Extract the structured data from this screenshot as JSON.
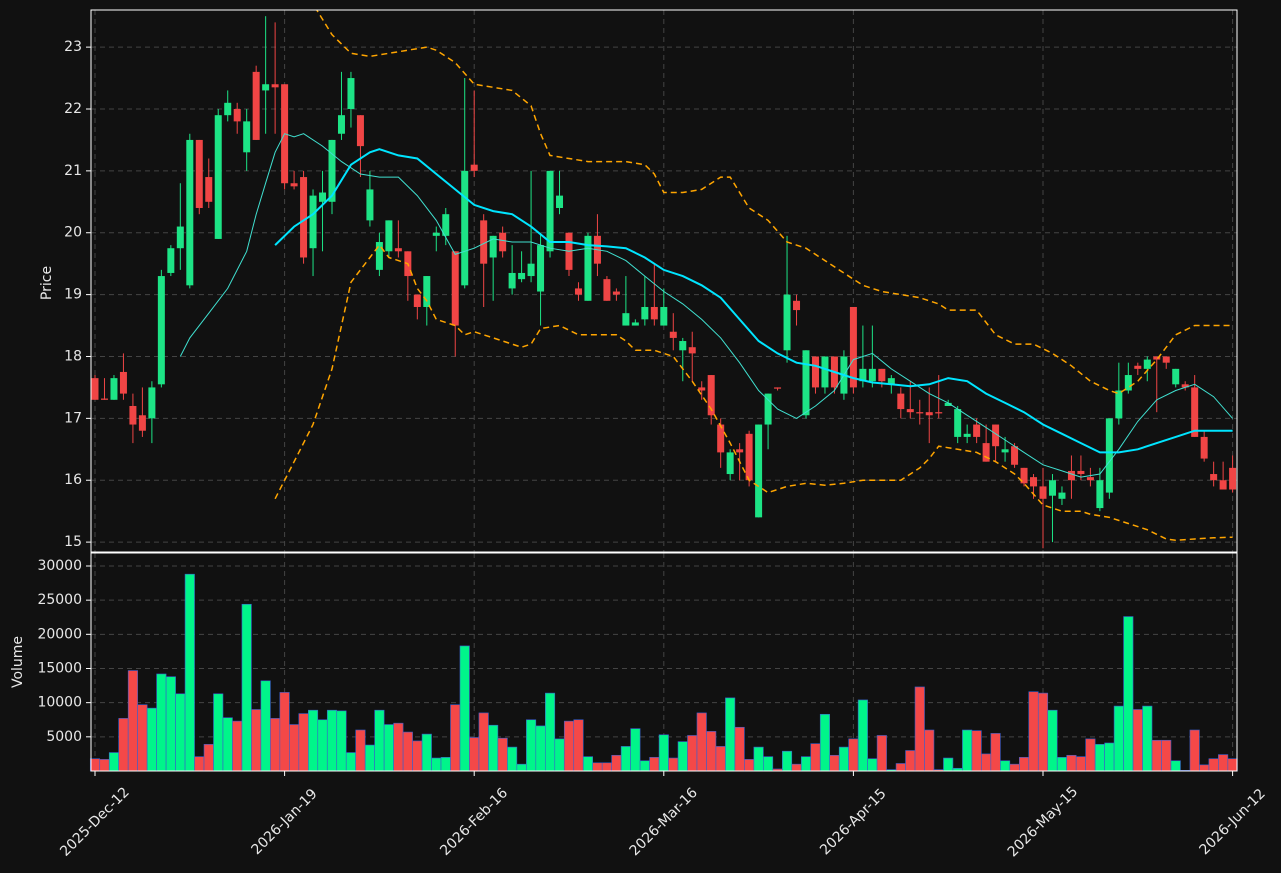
{
  "chart_data": [
    {
      "type": "candlestick",
      "ylabel": "Price",
      "ylim": [
        14.84,
        23.6
      ],
      "yticks": [
        15,
        16,
        17,
        18,
        19,
        20,
        21,
        22,
        23
      ],
      "grid": true,
      "up_color": "#1de486",
      "down_color": "#f04545",
      "open": [
        17.65,
        17.32,
        17.3,
        17.75,
        17.2,
        17.05,
        17.0,
        17.55,
        19.35,
        19.75,
        19.15,
        21.5,
        20.9,
        19.9,
        21.9,
        22.0,
        21.3,
        22.6,
        22.3,
        22.4,
        22.4,
        20.8,
        20.9,
        19.75,
        20.5,
        20.5,
        21.6,
        22.0,
        21.9,
        20.2,
        19.4,
        19.7,
        19.75,
        19.7,
        19.0,
        18.8,
        19.95,
        19.95,
        19.7,
        19.15,
        21.1,
        20.2,
        19.6,
        20.0,
        19.1,
        19.25,
        19.3,
        19.05,
        19.7,
        20.4,
        20.0,
        19.1,
        18.9,
        19.95,
        19.25,
        19.05,
        18.5,
        18.5,
        18.6,
        18.8,
        18.5,
        18.4,
        18.1,
        18.15,
        17.5,
        17.7,
        16.9,
        16.1,
        16.5,
        16.75,
        15.4,
        16.9,
        17.5,
        18.1,
        18.9,
        17.05,
        18.0,
        17.5,
        18.0,
        17.4,
        18.8,
        17.6,
        17.6,
        17.8,
        17.55,
        17.4,
        17.15,
        17.1,
        17.1,
        17.1,
        17.2,
        16.7,
        16.7,
        16.9,
        16.6,
        16.9,
        16.45,
        16.55,
        16.2,
        16.05,
        15.9,
        15.75,
        15.7,
        16.15,
        16.15,
        16.05,
        15.55,
        15.8,
        17.0,
        17.45,
        17.85,
        17.8,
        18.0,
        18.0,
        17.55,
        17.55,
        17.5,
        16.7,
        16.1,
        16.0,
        16.2
      ],
      "high": [
        17.7,
        17.65,
        17.7,
        18.05,
        17.4,
        17.5,
        17.6,
        19.4,
        19.8,
        20.8,
        21.6,
        21.5,
        21.2,
        22.0,
        22.3,
        22.1,
        22.0,
        22.7,
        23.5,
        23.4,
        22.4,
        21.0,
        21.0,
        20.7,
        21.0,
        21.5,
        22.6,
        22.6,
        21.9,
        21.0,
        20.0,
        20.2,
        20.2,
        19.7,
        19.0,
        19.3,
        20.1,
        20.4,
        19.7,
        22.5,
        22.3,
        20.3,
        19.95,
        20.1,
        19.8,
        19.7,
        21.0,
        20.0,
        21.0,
        21.0,
        20.0,
        19.2,
        20.0,
        20.3,
        19.3,
        19.1,
        19.3,
        18.6,
        19.3,
        19.5,
        19.1,
        18.7,
        18.3,
        18.4,
        17.6,
        17.7,
        17.0,
        16.5,
        16.6,
        16.8,
        16.9,
        17.4,
        17.5,
        19.95,
        19.0,
        18.1,
        18.0,
        18.0,
        18.0,
        18.1,
        18.8,
        18.5,
        18.5,
        17.8,
        17.7,
        17.5,
        17.6,
        17.3,
        17.5,
        17.7,
        17.3,
        17.2,
        16.9,
        17.0,
        16.9,
        16.9,
        16.7,
        16.6,
        16.2,
        16.1,
        16.2,
        16.1,
        15.9,
        16.4,
        16.4,
        16.2,
        16.2,
        17.0,
        17.9,
        17.9,
        17.9,
        18.0,
        18.0,
        18.0,
        17.8,
        17.6,
        17.7,
        16.8,
        16.3,
        16.3,
        16.4
      ],
      "low": [
        17.3,
        17.3,
        17.3,
        17.3,
        16.6,
        16.7,
        16.6,
        17.5,
        19.3,
        19.4,
        19.1,
        20.3,
        20.4,
        19.9,
        21.8,
        21.6,
        21.0,
        21.5,
        21.6,
        21.6,
        20.7,
        20.7,
        19.5,
        19.3,
        19.7,
        20.3,
        21.5,
        21.7,
        20.9,
        20.1,
        19.3,
        19.6,
        19.6,
        18.9,
        18.6,
        18.5,
        19.7,
        19.8,
        18.0,
        19.1,
        20.9,
        18.8,
        18.9,
        19.6,
        19.0,
        19.2,
        19.2,
        18.5,
        19.6,
        20.3,
        19.3,
        18.9,
        18.9,
        19.3,
        18.9,
        18.9,
        18.5,
        18.5,
        18.5,
        18.5,
        18.5,
        18.1,
        17.6,
        17.6,
        17.3,
        16.9,
        16.2,
        16.0,
        16.0,
        15.9,
        15.4,
        16.5,
        17.45,
        17.9,
        18.5,
        17.0,
        17.4,
        17.4,
        17.4,
        17.3,
        17.4,
        17.5,
        17.5,
        17.5,
        17.4,
        17.0,
        17.0,
        16.9,
        16.6,
        17.0,
        17.2,
        16.6,
        16.6,
        16.6,
        16.3,
        16.3,
        16.3,
        16.2,
        15.9,
        15.7,
        14.9,
        15.0,
        15.6,
        15.7,
        16.0,
        15.9,
        15.5,
        15.7,
        16.9,
        17.4,
        17.7,
        17.6,
        17.1,
        17.8,
        17.5,
        17.45,
        16.7,
        16.3,
        15.9,
        15.85,
        15.8
      ],
      "close": [
        17.3,
        17.3,
        17.65,
        17.4,
        16.9,
        16.8,
        17.5,
        19.3,
        19.75,
        20.1,
        21.5,
        20.4,
        20.5,
        21.9,
        22.1,
        21.8,
        21.8,
        21.5,
        22.4,
        22.35,
        20.8,
        20.75,
        19.6,
        20.6,
        20.65,
        21.5,
        21.9,
        22.5,
        21.4,
        20.7,
        19.85,
        20.2,
        19.7,
        19.3,
        18.8,
        19.3,
        20.0,
        20.3,
        18.5,
        21.0,
        21.0,
        19.5,
        19.95,
        19.7,
        19.35,
        19.35,
        19.5,
        19.8,
        21.0,
        20.6,
        19.4,
        19.0,
        19.95,
        19.5,
        18.9,
        19.0,
        18.7,
        18.55,
        18.8,
        18.6,
        18.8,
        18.3,
        18.25,
        18.05,
        17.45,
        17.05,
        16.45,
        16.45,
        16.45,
        16.0,
        16.9,
        17.4,
        17.48,
        19.0,
        18.75,
        18.1,
        17.5,
        18.0,
        17.5,
        18.0,
        17.5,
        17.8,
        17.8,
        17.6,
        17.65,
        17.15,
        17.1,
        17.08,
        17.05,
        17.08,
        17.25,
        17.15,
        16.75,
        16.7,
        16.3,
        16.55,
        16.5,
        16.25,
        15.95,
        15.9,
        15.7,
        16.0,
        15.8,
        16.0,
        16.1,
        16.0,
        16.0,
        17.0,
        17.45,
        17.7,
        17.8,
        17.95,
        17.95,
        17.9,
        17.8,
        17.5,
        16.7,
        16.35,
        16.0,
        15.85,
        15.85
      ],
      "series": [
        {
          "color": "#40e0d0",
          "width": 1,
          "dash": false,
          "x": [
            9,
            10,
            12,
            14,
            16,
            17,
            18,
            19,
            20,
            21,
            22,
            24,
            26,
            28,
            30,
            32,
            34,
            36,
            38,
            40,
            42,
            44,
            46,
            48,
            50,
            52,
            54,
            56,
            58,
            60,
            62,
            64,
            66,
            68,
            70,
            72,
            74,
            76,
            78,
            80,
            82,
            84,
            86,
            88,
            90,
            92,
            94,
            96,
            98,
            100,
            102,
            104,
            106,
            108,
            110,
            112,
            114,
            116,
            118,
            120
          ],
          "values": [
            18.0,
            18.3,
            18.7,
            19.1,
            19.7,
            20.3,
            20.8,
            21.3,
            21.6,
            21.55,
            21.6,
            21.4,
            21.15,
            20.95,
            20.9,
            20.9,
            20.6,
            20.2,
            19.65,
            19.75,
            19.9,
            19.85,
            19.85,
            19.75,
            19.7,
            19.75,
            19.7,
            19.55,
            19.3,
            19.05,
            18.85,
            18.6,
            18.3,
            17.9,
            17.45,
            17.15,
            17.0,
            17.2,
            17.45,
            17.95,
            18.05,
            17.8,
            17.6,
            17.4,
            17.25,
            17.05,
            16.85,
            16.65,
            16.45,
            16.25,
            16.15,
            16.05,
            16.1,
            16.5,
            16.95,
            17.3,
            17.45,
            17.55,
            17.35,
            17.0
          ]
        },
        {
          "color": "#00e5ff",
          "width": 2,
          "dash": false,
          "x": [
            19,
            21,
            23,
            25,
            27,
            29,
            30,
            32,
            34,
            36,
            38,
            40,
            42,
            44,
            46,
            48,
            50,
            52,
            54,
            56,
            58,
            60,
            62,
            64,
            66,
            68,
            70,
            72,
            74,
            76,
            78,
            80,
            82,
            84,
            86,
            88,
            90,
            92,
            94,
            96,
            98,
            100,
            102,
            104,
            106,
            108,
            110,
            112,
            114,
            116,
            118,
            120
          ],
          "values": [
            19.8,
            20.1,
            20.3,
            20.6,
            21.1,
            21.3,
            21.35,
            21.25,
            21.2,
            20.95,
            20.7,
            20.45,
            20.35,
            20.3,
            20.1,
            19.85,
            19.85,
            19.8,
            19.78,
            19.75,
            19.6,
            19.4,
            19.3,
            19.15,
            18.95,
            18.6,
            18.25,
            18.05,
            17.9,
            17.85,
            17.75,
            17.65,
            17.58,
            17.55,
            17.52,
            17.55,
            17.65,
            17.6,
            17.4,
            17.25,
            17.1,
            16.9,
            16.75,
            16.6,
            16.45,
            16.45,
            16.5,
            16.6,
            16.7,
            16.8,
            16.8,
            16.8
          ]
        },
        {
          "color": "#ffa500",
          "width": 1.5,
          "dash": true,
          "x": [
            19,
            21,
            23,
            25,
            27,
            29,
            31,
            33,
            35,
            36,
            38,
            40,
            42,
            44,
            46,
            47,
            48,
            50,
            52,
            54,
            56,
            58,
            59,
            60,
            62,
            64,
            66,
            67,
            69,
            71,
            73,
            75,
            77,
            79,
            81,
            83,
            85,
            87,
            89,
            90,
            93,
            95,
            97,
            99,
            101,
            103,
            105,
            107,
            108,
            110,
            112,
            114,
            116,
            120
          ],
          "values": [
            23.9,
            24.0,
            23.7,
            23.2,
            22.9,
            22.85,
            22.9,
            22.95,
            23.0,
            22.95,
            22.75,
            22.4,
            22.35,
            22.3,
            22.05,
            21.6,
            21.25,
            21.2,
            21.15,
            21.15,
            21.15,
            21.1,
            20.95,
            20.65,
            20.65,
            20.7,
            20.9,
            20.9,
            20.4,
            20.2,
            19.85,
            19.75,
            19.55,
            19.35,
            19.15,
            19.05,
            19.0,
            18.95,
            18.85,
            18.75,
            18.75,
            18.35,
            18.2,
            18.2,
            18.05,
            17.85,
            17.6,
            17.45,
            17.4,
            17.6,
            17.95,
            18.35,
            18.5,
            18.5
          ]
        },
        {
          "color": "#ffa500",
          "width": 1.5,
          "dash": true,
          "x": [
            19,
            21,
            23,
            25,
            26,
            27,
            29,
            30,
            31,
            33,
            34,
            35,
            36,
            38,
            39,
            40,
            42,
            44,
            45,
            46,
            47,
            49,
            51,
            53,
            55,
            56,
            57,
            59,
            61,
            63,
            65,
            67,
            69,
            71,
            73,
            75,
            77,
            79,
            81,
            83,
            85,
            87,
            88,
            89,
            91,
            93,
            95,
            97,
            98,
            100,
            102,
            104,
            105,
            107,
            109,
            111,
            113,
            114,
            116,
            118,
            120
          ],
          "values": [
            15.7,
            16.3,
            16.9,
            17.8,
            18.5,
            19.2,
            19.6,
            19.8,
            19.6,
            19.5,
            19.1,
            18.9,
            18.6,
            18.5,
            18.35,
            18.4,
            18.3,
            18.2,
            18.15,
            18.2,
            18.45,
            18.5,
            18.35,
            18.35,
            18.35,
            18.25,
            18.1,
            18.1,
            18.0,
            17.6,
            17.15,
            16.6,
            16.0,
            15.8,
            15.9,
            15.95,
            15.92,
            15.95,
            16.0,
            16.0,
            16.0,
            16.2,
            16.35,
            16.55,
            16.5,
            16.45,
            16.3,
            16.1,
            15.95,
            15.6,
            15.5,
            15.5,
            15.45,
            15.4,
            15.3,
            15.2,
            15.05,
            15.03,
            15.05,
            15.07,
            15.08
          ]
        }
      ]
    },
    {
      "type": "bar",
      "ylabel": "Volume",
      "ylim": [
        0,
        31900
      ],
      "yticks": [
        5000,
        10000,
        15000,
        20000,
        25000,
        30000
      ],
      "grid": true,
      "up_color": "#00f58a",
      "down_color": "#f44848",
      "edge_color": "#3a5fcd",
      "categories": [
        "2025-Dec-12",
        null,
        null,
        null,
        null,
        null,
        null,
        null,
        null,
        null,
        null,
        null,
        null,
        null,
        null,
        null,
        null,
        null,
        null,
        null,
        "2026-Jan-19",
        null,
        null,
        null,
        null,
        null,
        null,
        null,
        null,
        null,
        null,
        null,
        null,
        null,
        null,
        null,
        null,
        null,
        null,
        null,
        "2026-Feb-16",
        null,
        null,
        null,
        null,
        null,
        null,
        null,
        null,
        null,
        null,
        null,
        null,
        null,
        null,
        null,
        null,
        null,
        null,
        null,
        "2026-Mar-16",
        null,
        null,
        null,
        null,
        null,
        null,
        null,
        null,
        null,
        null,
        null,
        null,
        null,
        null,
        null,
        null,
        null,
        null,
        null,
        "2026-Apr-15",
        null,
        null,
        null,
        null,
        null,
        null,
        null,
        null,
        null,
        null,
        null,
        null,
        null,
        null,
        null,
        null,
        null,
        null,
        null,
        "2026-May-15",
        null,
        null,
        null,
        null,
        null,
        null,
        null,
        null,
        null,
        null,
        null,
        null,
        null,
        null,
        null,
        null,
        null,
        null,
        null,
        "2026-Jun-12"
      ],
      "values": [
        1800,
        1700,
        2700,
        7700,
        14700,
        9700,
        9200,
        14200,
        13800,
        11300,
        28800,
        2100,
        3900,
        11300,
        7800,
        7300,
        24400,
        9000,
        13200,
        7700,
        11500,
        6800,
        8400,
        8900,
        7500,
        8900,
        8800,
        2700,
        6000,
        3800,
        8900,
        6800,
        7000,
        5700,
        4400,
        5400,
        1900,
        2000,
        9700,
        18300,
        4900,
        8500,
        6700,
        4800,
        3500,
        1000,
        7500,
        6600,
        11400,
        4700,
        7300,
        7500,
        2100,
        1200,
        1200,
        2300,
        3600,
        6200,
        1500,
        2000,
        5300,
        1900,
        4300,
        5200,
        8500,
        5800,
        3600,
        10700,
        6400,
        1700,
        3500,
        2100,
        300,
        2900,
        1000,
        2100,
        4000,
        8300,
        2300,
        3500,
        4700,
        10400,
        1800,
        5200,
        200,
        1100,
        3000,
        12300,
        6000,
        200,
        1900,
        400,
        6000,
        5900,
        2500,
        5500,
        1500,
        1000,
        2000,
        11600,
        11400,
        8900,
        2000,
        2300,
        2100,
        4700,
        3900,
        4100,
        9500,
        22600,
        9000,
        9500,
        4500,
        4500,
        1500,
        100,
        6000,
        900,
        1800,
        2400,
        1800
      ]
    }
  ]
}
